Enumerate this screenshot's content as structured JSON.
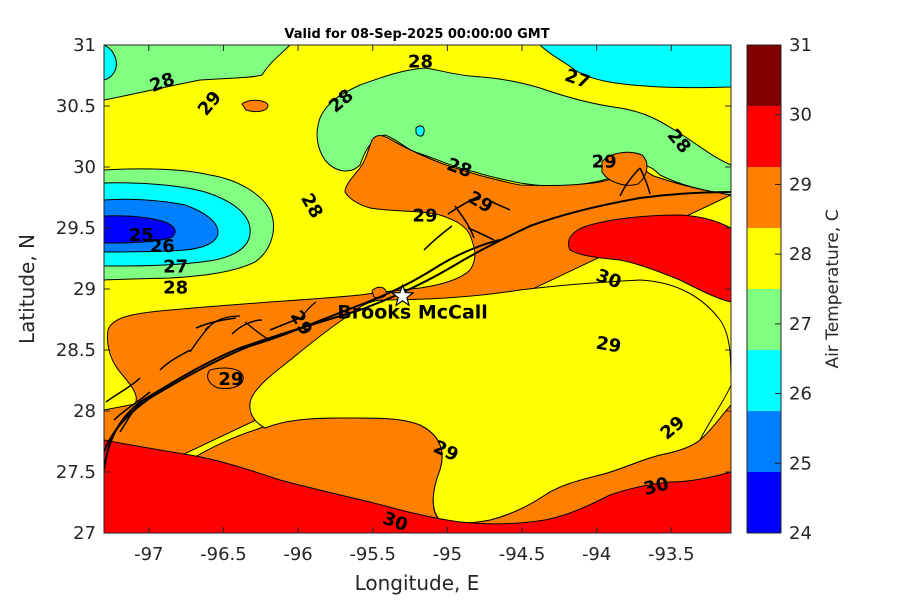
{
  "title": "Valid for 08-Sep-2025 00:00:00 GMT",
  "xlabel": "Longitude, E",
  "ylabel": "Latitude, N",
  "colorbar_label": "Air Temperature, C",
  "x_ticks": [
    "-97",
    "-96.5",
    "-96",
    "-95.5",
    "-95",
    "-94.5",
    "-94",
    "-93.5"
  ],
  "y_ticks": [
    "31",
    "30.5",
    "30",
    "29.5",
    "29",
    "28.5",
    "28",
    "27.5",
    "27"
  ],
  "colorbar_ticks": [
    "31",
    "30",
    "29",
    "28",
    "27",
    "26",
    "25",
    "24"
  ],
  "station": {
    "name": "Brooks McCall",
    "lon": -95.3,
    "lat": 28.94
  },
  "contour_labels": [
    {
      "text": "28",
      "lon": -96.91,
      "lat": 30.69,
      "rot": -20
    },
    {
      "text": "29",
      "lon": -96.59,
      "lat": 30.52,
      "rot": -50
    },
    {
      "text": "28",
      "lon": -95.71,
      "lat": 30.54,
      "rot": -40
    },
    {
      "text": "28",
      "lon": -95.18,
      "lat": 30.86,
      "rot": 0
    },
    {
      "text": "27",
      "lon": -94.13,
      "lat": 30.72,
      "rot": 20
    },
    {
      "text": "28",
      "lon": -93.45,
      "lat": 30.21,
      "rot": 50
    },
    {
      "text": "29",
      "lon": -93.95,
      "lat": 30.04,
      "rot": 0
    },
    {
      "text": "28",
      "lon": -95.91,
      "lat": 29.68,
      "rot": 60
    },
    {
      "text": "29",
      "lon": -95.15,
      "lat": 29.6,
      "rot": 0
    },
    {
      "text": "28",
      "lon": -94.92,
      "lat": 29.99,
      "rot": 20
    },
    {
      "text": "29",
      "lon": -94.78,
      "lat": 29.71,
      "rot": 30
    },
    {
      "text": "25",
      "lon": -97.05,
      "lat": 29.44,
      "rot": 0
    },
    {
      "text": "26",
      "lon": -96.91,
      "lat": 29.35,
      "rot": 0
    },
    {
      "text": "27",
      "lon": -96.82,
      "lat": 29.18,
      "rot": 0
    },
    {
      "text": "28",
      "lon": -96.82,
      "lat": 29.01,
      "rot": 0
    },
    {
      "text": "29",
      "lon": -95.98,
      "lat": 28.72,
      "rot": 60
    },
    {
      "text": "29",
      "lon": -96.45,
      "lat": 28.26,
      "rot": 0
    },
    {
      "text": "30",
      "lon": -93.92,
      "lat": 29.08,
      "rot": 20
    },
    {
      "text": "29",
      "lon": -93.92,
      "lat": 28.54,
      "rot": 10
    },
    {
      "text": "29",
      "lon": -93.49,
      "lat": 27.86,
      "rot": -40
    },
    {
      "text": "29",
      "lon": -95.01,
      "lat": 27.67,
      "rot": 25
    },
    {
      "text": "30",
      "lon": -93.6,
      "lat": 27.38,
      "rot": -15
    },
    {
      "text": "30",
      "lon": -95.35,
      "lat": 27.09,
      "rot": 20
    }
  ],
  "colors": {
    "c24_25": "#0000ff",
    "c25_26": "#0080ff",
    "c26_27": "#00ffff",
    "c27_28": "#80ff80",
    "c28_29": "#ffff00",
    "c29_30": "#ff8000",
    "c30_31": "#ff0000",
    "c31_plus": "#800000"
  },
  "chart_data": {
    "type": "heatmap",
    "title": "Valid for 08-Sep-2025 00:00:00 GMT",
    "xlabel": "Longitude, E",
    "ylabel": "Latitude, N",
    "xlim": [
      -97.3,
      -93.1
    ],
    "ylim": [
      27,
      31
    ],
    "colorbar": {
      "label": "Air Temperature, C",
      "range": [
        24,
        31
      ],
      "levels": [
        24,
        25,
        26,
        27,
        28,
        29,
        30,
        31
      ]
    },
    "regions": [
      {
        "temperature_band": "28-29",
        "description": "background band across the domain"
      },
      {
        "temperature_band": "27-28",
        "location": "north and north-east"
      },
      {
        "temperature_band": "26-27",
        "location": "north-east corner and west near 29.5N"
      },
      {
        "temperature_band": "25-26",
        "location": "west near -97, 29.5N"
      },
      {
        "temperature_band": "29-30",
        "location": "coastal and offshore"
      },
      {
        "temperature_band": "30-31",
        "location": "south-east offshore and south"
      }
    ]
  }
}
